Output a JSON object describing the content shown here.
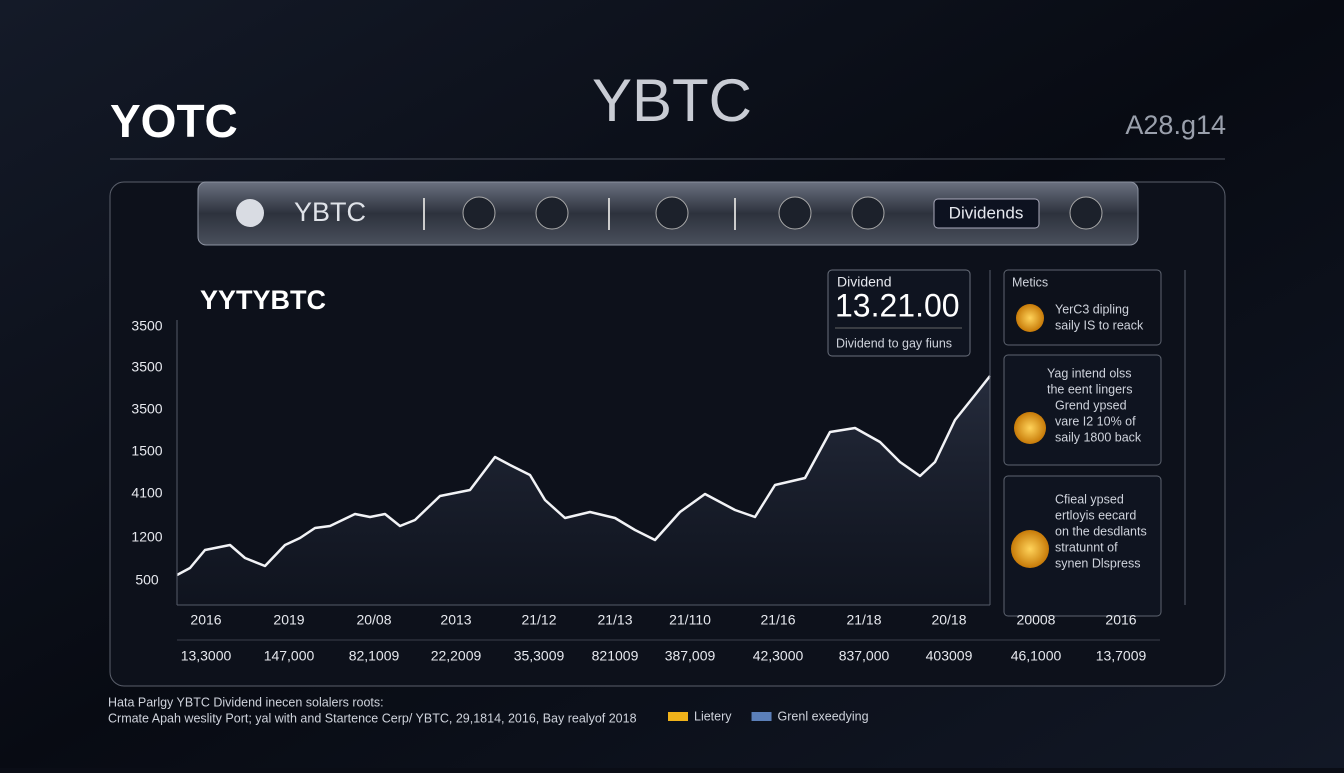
{
  "header": {
    "left": "YOTC",
    "center": "YBTC",
    "right": "A28.g14"
  },
  "toolbar": {
    "label": "YBTC",
    "button": "Dividends"
  },
  "chart": {
    "title": "YYTYBTC",
    "y_labels": [
      "3500",
      "3500",
      "3500",
      "1500",
      "4100",
      "1200",
      "500"
    ],
    "x_labels": [
      "2016",
      "2019",
      "20/08",
      "2013",
      "21/12",
      "21/13",
      "21/110",
      "21/16",
      "21/18",
      "20/18",
      "20008",
      "2016"
    ],
    "x_values": [
      "13,3000",
      "147,000",
      "82,1009",
      "22,2009",
      "35,3009",
      "821009",
      "387,009",
      "42,3000",
      "837,000",
      "403009",
      "46,1000",
      "13,7009"
    ]
  },
  "dividend_card": {
    "label": "Dividend",
    "value": "13.21.00",
    "caption": "Dividend to gay fiuns"
  },
  "metrics": {
    "title": "Metics",
    "items": [
      {
        "lines": [
          "YerC3 dipling",
          "saily IS to reack"
        ]
      },
      {
        "lines": [
          "Yag intend olss",
          "the eent lingers",
          "Grend ypsed",
          "vare I2 10% of",
          "saily 1800 back"
        ]
      },
      {
        "lines": [
          "Cfieal ypsed",
          "ertloyis eecard",
          "on the desdlants",
          "stratunnt of",
          "synen Dlspress"
        ]
      }
    ]
  },
  "footer": {
    "lines": [
      "Hata Parlgy YBTC Dividend inecen solalers roots:",
      "Crmate Apah weslity Port; yal with and Startence Cerp/ YBTC, 29,1814, 2016, Bay realyof 2018"
    ]
  },
  "legend": [
    {
      "name": "Lietery",
      "color": "#f0b21a"
    },
    {
      "name": "Grenl exeedying",
      "color": "#5b7fb8"
    }
  ]
}
